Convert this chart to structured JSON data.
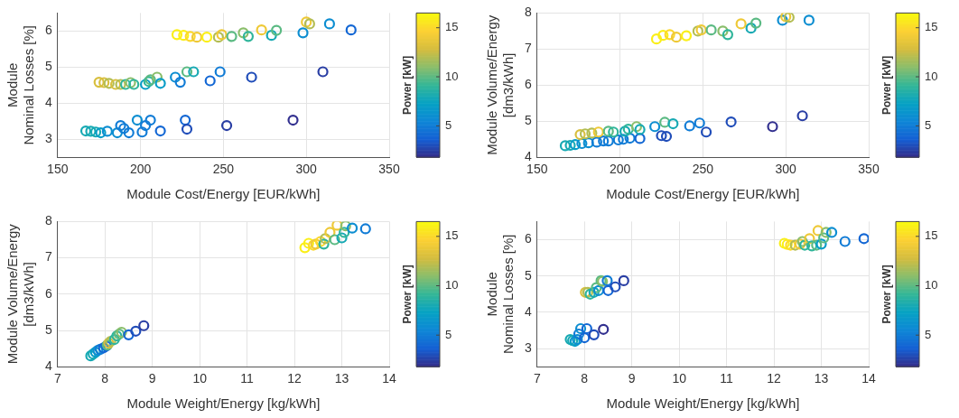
{
  "chart_data": [
    {
      "type": "scatter",
      "xlabel": "Module Cost/Energy [EUR/kWh]",
      "ylabel": "Module\nNominal Losses [%]",
      "clabel": "Power [kW]",
      "marker": "circle",
      "grid": true,
      "xlim": [
        150,
        350
      ],
      "xticks": [
        150,
        200,
        250,
        300,
        350
      ],
      "ylim": [
        2.5,
        6.5
      ],
      "yticks": [
        3,
        4,
        5,
        6
      ],
      "clim": [
        1.8,
        16.5
      ],
      "cticks": [
        5,
        10,
        15
      ],
      "x": [
        222,
        226,
        230,
        234,
        240,
        247,
        249,
        255,
        262,
        265,
        273,
        279,
        282,
        298,
        300,
        302,
        314,
        327,
        175,
        178,
        181,
        185,
        188,
        191,
        194,
        196,
        203,
        205,
        206,
        210,
        212,
        221,
        224,
        228,
        232,
        242,
        248,
        267,
        310,
        167,
        170,
        173,
        176,
        180,
        186,
        188,
        190,
        193,
        198,
        201,
        203,
        206,
        212,
        227,
        228,
        252,
        292
      ],
      "values": [
        5.9,
        5.88,
        5.85,
        5.83,
        5.83,
        5.83,
        5.9,
        5.85,
        5.95,
        5.85,
        6.03,
        5.88,
        6.02,
        5.95,
        6.25,
        6.2,
        6.2,
        6.03,
        4.58,
        4.57,
        4.55,
        4.52,
        4.52,
        4.52,
        4.57,
        4.52,
        4.52,
        4.6,
        4.65,
        4.72,
        4.55,
        4.72,
        4.58,
        4.87,
        4.87,
        4.62,
        4.87,
        4.72,
        4.87,
        3.23,
        3.22,
        3.2,
        3.18,
        3.22,
        3.18,
        3.38,
        3.3,
        3.18,
        3.53,
        3.2,
        3.38,
        3.53,
        3.23,
        3.53,
        3.28,
        3.38,
        3.53
      ],
      "cvalues": [
        16,
        16,
        15,
        14,
        16,
        12,
        14,
        10,
        11,
        9,
        14,
        8,
        10,
        6,
        14,
        12,
        6,
        4,
        13,
        13,
        12,
        13,
        12,
        9,
        11,
        9,
        7,
        9,
        10,
        11,
        7,
        6,
        5,
        10,
        8,
        4,
        5,
        3,
        2.5,
        8,
        8,
        8,
        7,
        6,
        6,
        5,
        5,
        5,
        6,
        5,
        5,
        5,
        4,
        4,
        3,
        2.5,
        2
      ]
    },
    {
      "type": "scatter",
      "xlabel": "Module Cost/Energy [EUR/kWh]",
      "ylabel": "Module Volume/Energy\n[dm3/kWh]",
      "clabel": "Power [kW]",
      "marker": "circle",
      "grid": true,
      "xlim": [
        150,
        350
      ],
      "xticks": [
        150,
        200,
        250,
        300,
        350
      ],
      "ylim": [
        4,
        8
      ],
      "yticks": [
        4,
        5,
        6,
        7,
        8
      ],
      "clim": [
        1.8,
        16.5
      ],
      "cticks": [
        5,
        10,
        15
      ],
      "x": [
        222,
        226,
        230,
        234,
        240,
        247,
        249,
        255,
        262,
        265,
        273,
        279,
        282,
        298,
        300,
        302,
        314,
        167,
        170,
        173,
        177,
        181,
        186,
        190,
        193,
        199,
        202,
        206,
        212,
        176,
        179,
        183,
        187,
        193,
        196,
        203,
        205,
        210,
        212,
        221,
        225,
        228,
        227,
        232,
        242,
        248,
        252,
        267,
        292,
        310
      ],
      "values": [
        7.28,
        7.38,
        7.4,
        7.33,
        7.37,
        7.5,
        7.53,
        7.53,
        7.5,
        7.4,
        7.7,
        7.58,
        7.72,
        7.8,
        7.9,
        7.88,
        7.8,
        4.32,
        4.33,
        4.35,
        4.38,
        4.4,
        4.42,
        4.45,
        4.45,
        4.48,
        4.5,
        4.53,
        4.52,
        4.63,
        4.65,
        4.67,
        4.7,
        4.72,
        4.7,
        4.72,
        4.78,
        4.85,
        4.77,
        4.85,
        4.6,
        4.58,
        4.97,
        4.93,
        4.87,
        4.95,
        4.7,
        4.98,
        4.85,
        5.15
      ],
      "cvalues": [
        16,
        16,
        15,
        14,
        16,
        12,
        14,
        10,
        11,
        9,
        14,
        8,
        10,
        6,
        14,
        12,
        6,
        8,
        8,
        7,
        6,
        6,
        5,
        5,
        5,
        5,
        5,
        5,
        4,
        13,
        12,
        12,
        14,
        10,
        9,
        8,
        9,
        11,
        8,
        6,
        3,
        3,
        10,
        8,
        5,
        5,
        3,
        3,
        2,
        2.5
      ]
    },
    {
      "type": "scatter",
      "xlabel": "Module Weight/Energy [kg/kWh]",
      "ylabel": "Module Volume/Energy\n[dm3/kWh]",
      "clabel": "Power [kW]",
      "marker": "circle",
      "grid": true,
      "xlim": [
        7,
        14
      ],
      "xticks": [
        7,
        8,
        9,
        10,
        11,
        12,
        13,
        14
      ],
      "ylim": [
        4,
        8
      ],
      "yticks": [
        4,
        5,
        6,
        7,
        8
      ],
      "clim": [
        1.8,
        16.5
      ],
      "cticks": [
        5,
        10,
        15
      ],
      "x": [
        12.22,
        12.3,
        12.4,
        12.45,
        12.55,
        12.62,
        12.65,
        12.75,
        12.85,
        12.9,
        13.0,
        13.05,
        13.08,
        13.22,
        13.5,
        7.7,
        7.75,
        7.8,
        7.85,
        7.9,
        7.97,
        8.03,
        8.05,
        8.08,
        8.12,
        8.2,
        8.25,
        8.3,
        8.35,
        8.5,
        8.65,
        8.82
      ],
      "values": [
        7.28,
        7.4,
        7.35,
        7.38,
        7.45,
        7.38,
        7.53,
        7.7,
        7.5,
        7.9,
        7.55,
        7.7,
        7.88,
        7.82,
        7.8,
        4.3,
        4.35,
        4.4,
        4.45,
        4.48,
        4.52,
        4.57,
        4.6,
        4.65,
        4.7,
        4.75,
        4.85,
        4.9,
        4.95,
        4.88,
        4.98,
        5.13
      ],
      "cvalues": [
        16,
        16,
        15,
        14,
        15,
        9,
        12,
        14,
        10,
        14,
        8,
        9,
        11,
        6,
        5,
        8,
        8,
        7,
        6,
        5,
        4,
        4,
        10,
        13,
        12,
        9,
        9,
        10,
        11,
        4,
        3,
        2.5
      ]
    },
    {
      "type": "scatter",
      "xlabel": "Module Weight/Energy [kg/kWh]",
      "ylabel": "Module\nNominal Losses [%]",
      "clabel": "Power [kW]",
      "marker": "circle",
      "grid": true,
      "xlim": [
        7,
        14
      ],
      "xticks": [
        7,
        8,
        9,
        10,
        11,
        12,
        13,
        14
      ],
      "ylim": [
        2.5,
        6.5
      ],
      "yticks": [
        3,
        4,
        5,
        6
      ],
      "clim": [
        1.8,
        16.5
      ],
      "cticks": [
        5,
        10,
        15
      ],
      "x": [
        12.22,
        12.28,
        12.35,
        12.45,
        12.55,
        12.6,
        12.65,
        12.75,
        12.8,
        12.9,
        12.93,
        13.0,
        13.05,
        13.1,
        13.22,
        13.5,
        13.9,
        8.02,
        8.07,
        8.12,
        8.2,
        8.25,
        8.3,
        8.35,
        8.38,
        8.48,
        8.5,
        8.65,
        8.83,
        7.7,
        7.75,
        7.8,
        7.85,
        7.88,
        7.92,
        8.0,
        8.05,
        8.2,
        8.4
      ],
      "values": [
        5.9,
        5.87,
        5.85,
        5.85,
        5.88,
        5.95,
        5.85,
        6.03,
        5.83,
        5.85,
        6.25,
        5.88,
        6.05,
        6.2,
        6.2,
        5.95,
        6.03,
        4.55,
        4.55,
        4.5,
        4.55,
        4.68,
        4.6,
        4.87,
        4.85,
        4.87,
        4.6,
        4.7,
        4.87,
        3.25,
        3.22,
        3.2,
        3.25,
        3.4,
        3.55,
        3.3,
        3.55,
        3.38,
        3.53
      ],
      "cvalues": [
        16,
        16,
        15,
        12,
        14,
        11,
        9,
        14,
        9,
        10,
        14,
        7,
        10,
        11,
        6,
        5,
        4,
        13,
        12,
        9,
        8,
        10,
        6,
        10,
        11,
        5,
        4,
        3,
        2.5,
        8,
        8,
        7,
        6,
        5,
        6,
        4,
        4,
        3,
        2
      ]
    }
  ]
}
